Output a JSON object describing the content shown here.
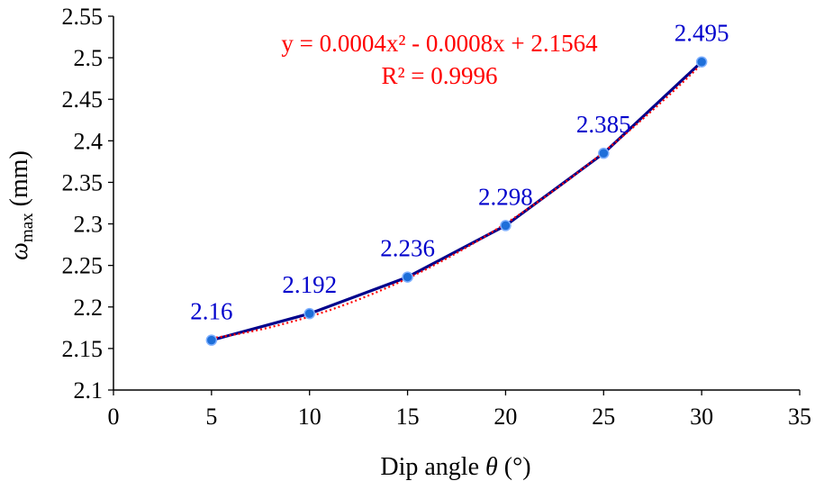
{
  "chart_data": {
    "type": "line",
    "title": "",
    "xlabel": {
      "prefix": "Dip angle ",
      "symbol": "θ",
      "suffix": " (°)"
    },
    "ylabel": {
      "symbol": "ω",
      "subscript": "max",
      "suffix": " (mm)"
    },
    "xlim": [
      0,
      35
    ],
    "ylim": [
      2.1,
      2.55
    ],
    "xticks": [
      0,
      5,
      10,
      15,
      20,
      25,
      30,
      35
    ],
    "yticks": [
      2.1,
      2.15,
      2.2,
      2.25,
      2.3,
      2.35,
      2.4,
      2.45,
      2.5,
      2.55
    ],
    "xtick_labels": [
      "0",
      "5",
      "10",
      "15",
      "20",
      "25",
      "30",
      "35"
    ],
    "ytick_labels": [
      "2.1",
      "2.15",
      "2.2",
      "2.25",
      "2.3",
      "2.35",
      "2.4",
      "2.45",
      "2.5",
      "2.55"
    ],
    "grid": false,
    "series": [
      {
        "x": [
          5,
          10,
          15,
          20,
          25,
          30
        ],
        "values": [
          2.16,
          2.192,
          2.236,
          2.298,
          2.385,
          2.495
        ],
        "data_labels": [
          "2.16",
          "2.192",
          "2.236",
          "2.298",
          "2.385",
          "2.495"
        ],
        "color": "#00008B",
        "marker_color": "#1E6FD9",
        "label_color": "#0000CC"
      }
    ],
    "trendline": {
      "type": "polynomial",
      "order": 2,
      "coefficients": [
        0.0004,
        -0.0008,
        2.1564
      ],
      "color": "#FF0000",
      "style": "dotted",
      "equation": "y = 0.0004x² - 0.0008x + 2.1564",
      "r_squared": "R² = 0.9996"
    }
  }
}
